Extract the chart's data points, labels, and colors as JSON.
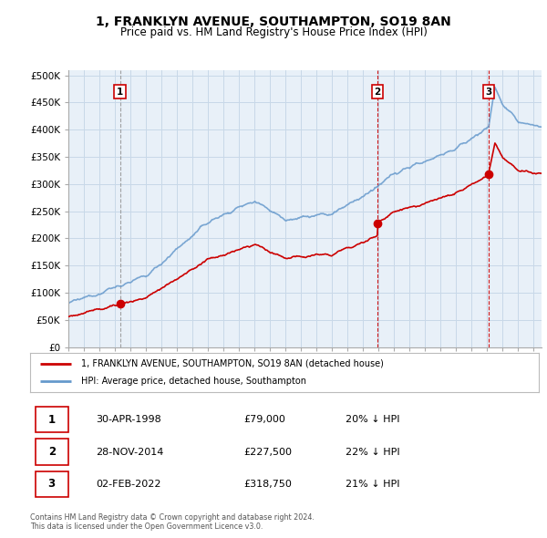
{
  "title": "1, FRANKLYN AVENUE, SOUTHAMPTON, SO19 8AN",
  "subtitle": "Price paid vs. HM Land Registry's House Price Index (HPI)",
  "background_color": "#ffffff",
  "plot_bg_color": "#e8f0f8",
  "grid_color": "#c8d8e8",
  "hpi_color": "#6699cc",
  "price_color": "#cc0000",
  "sale_marker_color": "#cc0000",
  "vline_color_1": "#999999",
  "vline_color_23": "#cc0000",
  "sale_dates": [
    1998.33,
    2014.91,
    2022.09
  ],
  "sale_prices": [
    79000,
    227500,
    318750
  ],
  "legend_entries": [
    "1, FRANKLYN AVENUE, SOUTHAMPTON, SO19 8AN (detached house)",
    "HPI: Average price, detached house, Southampton"
  ],
  "table_data": [
    {
      "num": "1",
      "date": "30-APR-1998",
      "price": "£79,000",
      "hpi": "20% ↓ HPI"
    },
    {
      "num": "2",
      "date": "28-NOV-2014",
      "price": "£227,500",
      "hpi": "22% ↓ HPI"
    },
    {
      "num": "3",
      "date": "02-FEB-2022",
      "price": "£318,750",
      "hpi": "21% ↓ HPI"
    }
  ],
  "footer": "Contains HM Land Registry data © Crown copyright and database right 2024.\nThis data is licensed under the Open Government Licence v3.0.",
  "ylim": [
    0,
    510000
  ],
  "xlim": [
    1995.0,
    2025.5
  ],
  "yticks": [
    0,
    50000,
    100000,
    150000,
    200000,
    250000,
    300000,
    350000,
    400000,
    450000,
    500000
  ]
}
